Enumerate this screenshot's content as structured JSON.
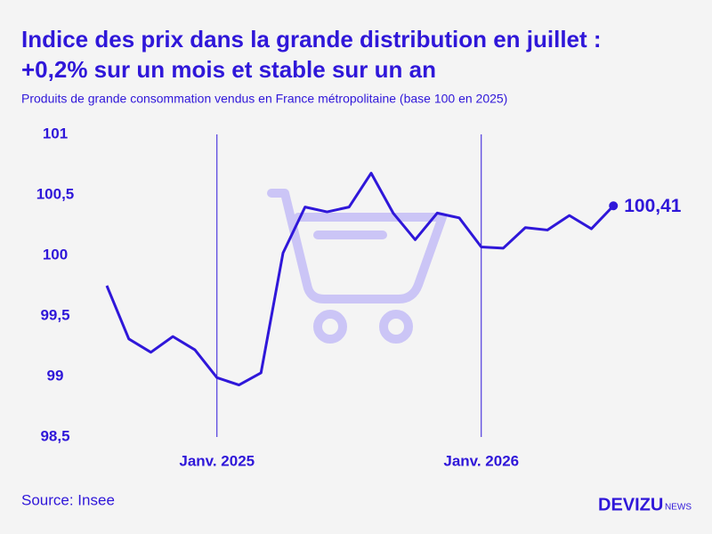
{
  "chart_data": {
    "type": "line",
    "title": [
      "Indice des prix dans la grande distribution en juillet :",
      "+0,2% sur un mois et stable sur un an"
    ],
    "subtitle": "Produits de grande consommation vendus en France métropolitaine (base 100 en 2025)",
    "source": "Source: Insee",
    "brand": "DEVIZU",
    "brand_suffix": "NEWS",
    "categories": [
      null,
      null,
      null,
      null,
      null,
      "Janv. 2025",
      null,
      null,
      null,
      null,
      null,
      null,
      null,
      null,
      null,
      null,
      null,
      "Janv. 2026",
      null,
      null,
      null,
      null,
      null,
      null
    ],
    "series": [
      {
        "name": "Indice",
        "color": "#2f17d9",
        "values": [
          99.75,
          99.31,
          99.2,
          99.33,
          99.22,
          98.99,
          98.93,
          99.03,
          100.02,
          100.4,
          100.36,
          100.4,
          100.68,
          100.35,
          100.13,
          100.35,
          100.31,
          100.07,
          100.06,
          100.23,
          100.21,
          100.33,
          100.22,
          100.41
        ],
        "value_labels": [
          null,
          null,
          null,
          null,
          null,
          null,
          null,
          null,
          null,
          null,
          null,
          null,
          null,
          null,
          null,
          null,
          null,
          null,
          null,
          null,
          null,
          null,
          null,
          "100,41"
        ]
      }
    ],
    "ylim": [
      98.5,
      101
    ],
    "yticks": [
      {
        "value": 98.5,
        "label": "98,5"
      },
      99,
      {
        "value": 99.5,
        "label": "99,5"
      },
      100,
      {
        "value": 100.5,
        "label": "100,5"
      },
      101
    ]
  }
}
